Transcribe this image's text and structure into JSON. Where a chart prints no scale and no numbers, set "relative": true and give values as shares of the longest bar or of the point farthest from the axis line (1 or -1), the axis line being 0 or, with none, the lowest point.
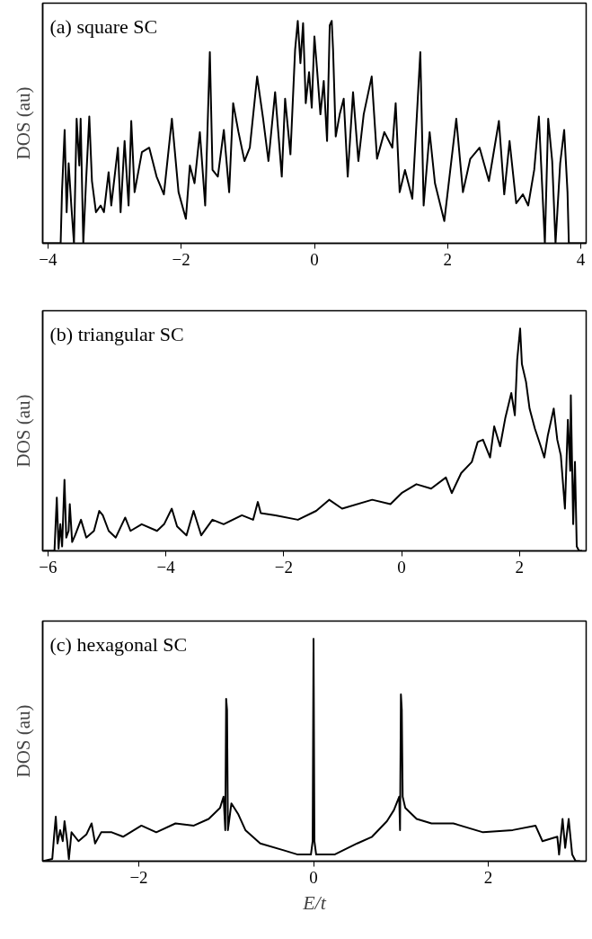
{
  "chart_data": [
    {
      "type": "line",
      "title": "(a) square SC",
      "ylabel": "DOS (au)",
      "relative": true,
      "tick_labels": "x",
      "grid": false,
      "line_style": "solid",
      "color": "#000000",
      "xlim": [
        -4.08,
        4.08
      ],
      "xticks": [
        -4,
        -2,
        0,
        2,
        4
      ],
      "x": [
        -4.08,
        -3.81,
        -3.79,
        -3.75,
        -3.72,
        -3.69,
        -3.65,
        -3.61,
        -3.57,
        -3.53,
        -3.51,
        -3.47,
        -3.43,
        -3.38,
        -3.34,
        -3.28,
        -3.21,
        -3.16,
        -3.09,
        -3.05,
        -2.95,
        -2.91,
        -2.85,
        -2.79,
        -2.75,
        -2.7,
        -2.59,
        -2.48,
        -2.37,
        -2.26,
        -2.14,
        -2.04,
        -1.93,
        -1.87,
        -1.8,
        -1.72,
        -1.64,
        -1.57,
        -1.53,
        -1.45,
        -1.36,
        -1.28,
        -1.22,
        -1.14,
        -1.05,
        -0.97,
        -0.86,
        -0.77,
        -0.69,
        -0.59,
        -0.49,
        -0.44,
        -0.36,
        -0.29,
        -0.25,
        -0.21,
        -0.17,
        -0.13,
        -0.08,
        -0.04,
        0.0,
        0.04,
        0.09,
        0.14,
        0.19,
        0.23,
        0.26,
        0.28,
        0.32,
        0.38,
        0.44,
        0.5,
        0.58,
        0.66,
        0.74,
        0.86,
        0.94,
        1.05,
        1.17,
        1.22,
        1.28,
        1.36,
        1.47,
        1.59,
        1.64,
        1.73,
        1.81,
        1.95,
        2.04,
        2.13,
        2.23,
        2.34,
        2.48,
        2.62,
        2.77,
        2.85,
        2.93,
        3.03,
        3.13,
        3.21,
        3.3,
        3.37,
        3.46,
        3.51,
        3.57,
        3.62,
        3.69,
        3.75,
        3.8,
        3.82,
        4.08
      ],
      "values": [
        0,
        0,
        0.23,
        0.51,
        0.14,
        0.36,
        0.17,
        0,
        0.56,
        0.35,
        0.56,
        0.0,
        0.27,
        0.57,
        0.28,
        0.14,
        0.17,
        0.14,
        0.32,
        0.17,
        0.43,
        0.14,
        0.46,
        0.17,
        0.55,
        0.23,
        0.41,
        0.43,
        0.3,
        0.22,
        0.56,
        0.23,
        0.11,
        0.35,
        0.27,
        0.5,
        0.17,
        0.86,
        0.33,
        0.3,
        0.51,
        0.23,
        0.63,
        0.5,
        0.37,
        0.43,
        0.75,
        0.56,
        0.37,
        0.68,
        0.3,
        0.65,
        0.4,
        0.87,
        1,
        0.81,
        0.99,
        0.63,
        0.77,
        0.61,
        0.93,
        0.78,
        0.58,
        0.73,
        0.46,
        0.98,
        1,
        0.87,
        0.48,
        0.58,
        0.65,
        0.3,
        0.68,
        0.37,
        0.58,
        0.75,
        0.38,
        0.5,
        0.43,
        0.63,
        0.23,
        0.33,
        0.2,
        0.86,
        0.17,
        0.5,
        0.27,
        0.1,
        0.33,
        0.56,
        0.23,
        0.38,
        0.43,
        0.28,
        0.55,
        0.22,
        0.46,
        0.18,
        0.22,
        0.17,
        0.33,
        0.57,
        0.0,
        0.56,
        0.37,
        0,
        0.36,
        0.51,
        0.23,
        0,
        0
      ]
    },
    {
      "type": "line",
      "title": "(b) triangular SC",
      "ylabel": "DOS (au)",
      "relative": true,
      "tick_labels": "x",
      "grid": false,
      "line_style": "solid",
      "color": "#000000",
      "xlim": [
        -6.09,
        3.13
      ],
      "xticks": [
        -6,
        -4,
        -2,
        0,
        2
      ],
      "x": [
        -6.07,
        -5.89,
        -5.85,
        -5.82,
        -5.79,
        -5.76,
        -5.72,
        -5.69,
        -5.65,
        -5.63,
        -5.59,
        -5.54,
        -5.44,
        -5.35,
        -5.22,
        -5.13,
        -5.07,
        -4.97,
        -4.85,
        -4.69,
        -4.6,
        -4.41,
        -4.15,
        -4.03,
        -3.9,
        -3.81,
        -3.65,
        -3.53,
        -3.4,
        -3.21,
        -3.02,
        -2.71,
        -2.52,
        -2.44,
        -2.39,
        -2.14,
        -1.76,
        -1.45,
        -1.23,
        -1.01,
        -0.5,
        -0.19,
        0.0,
        0.25,
        0.5,
        0.75,
        0.85,
        1.01,
        1.19,
        1.29,
        1.38,
        1.5,
        1.57,
        1.67,
        1.76,
        1.86,
        1.92,
        1.96,
        2.01,
        2.04,
        2.11,
        2.17,
        2.26,
        2.36,
        2.42,
        2.48,
        2.58,
        2.64,
        2.7,
        2.77,
        2.82,
        2.86,
        2.87,
        2.91,
        2.94,
        2.97,
        3.01,
        3.06
      ],
      "values": [
        0,
        0,
        0.24,
        0.01,
        0.12,
        0.02,
        0.32,
        0.06,
        0.09,
        0.21,
        0.04,
        0.07,
        0.14,
        0.06,
        0.09,
        0.18,
        0.16,
        0.09,
        0.06,
        0.15,
        0.09,
        0.12,
        0.09,
        0.12,
        0.19,
        0.11,
        0.07,
        0.18,
        0.07,
        0.14,
        0.12,
        0.16,
        0.14,
        0.22,
        0.17,
        0.16,
        0.14,
        0.18,
        0.23,
        0.19,
        0.23,
        0.21,
        0.26,
        0.3,
        0.28,
        0.33,
        0.26,
        0.35,
        0.4,
        0.49,
        0.5,
        0.42,
        0.56,
        0.47,
        0.6,
        0.71,
        0.61,
        0.86,
        1,
        0.84,
        0.76,
        0.64,
        0.55,
        0.47,
        0.42,
        0.52,
        0.64,
        0.5,
        0.43,
        0.19,
        0.59,
        0.36,
        0.7,
        0.12,
        0.4,
        0.02,
        0,
        0
      ]
    },
    {
      "type": "line",
      "title": "(c) hexagonal SC",
      "ylabel": "DOS (au)",
      "xlabel": "E/t",
      "relative": true,
      "tick_labels": "x",
      "grid": false,
      "line_style": "solid",
      "color": "#000000",
      "xlim": [
        -3.1,
        3.12
      ],
      "xticks": [
        -2,
        0,
        2
      ],
      "x": [
        -3.1,
        -2.99,
        -2.97,
        -2.95,
        -2.93,
        -2.9,
        -2.87,
        -2.85,
        -2.82,
        -2.8,
        -2.77,
        -2.69,
        -2.6,
        -2.54,
        -2.5,
        -2.43,
        -2.31,
        -2.18,
        -1.97,
        -1.8,
        -1.58,
        -1.37,
        -1.2,
        -1.07,
        -1.03,
        -1.01,
        -1.0,
        -0.99,
        -0.98,
        -0.94,
        -0.86,
        -0.78,
        -0.61,
        -0.35,
        -0.18,
        -0.03,
        -0.01,
        0.0,
        0.01,
        0.03,
        0.24,
        0.5,
        0.67,
        0.84,
        0.92,
        0.98,
        0.99,
        1.0,
        1.01,
        1.02,
        1.05,
        1.18,
        1.35,
        1.6,
        1.94,
        2.28,
        2.54,
        2.62,
        2.79,
        2.81,
        2.85,
        2.88,
        2.92,
        2.96,
        3.0,
        3.05
      ],
      "values": [
        0,
        0.01,
        0.11,
        0.2,
        0.08,
        0.14,
        0.09,
        0.18,
        0.09,
        0.01,
        0.13,
        0.09,
        0.12,
        0.17,
        0.08,
        0.13,
        0.13,
        0.11,
        0.16,
        0.13,
        0.17,
        0.16,
        0.19,
        0.24,
        0.29,
        0.14,
        0.73,
        0.68,
        0.14,
        0.26,
        0.21,
        0.14,
        0.08,
        0.05,
        0.03,
        0.03,
        0.09,
        1,
        0.09,
        0.03,
        0.03,
        0.08,
        0.11,
        0.18,
        0.23,
        0.29,
        0.14,
        0.75,
        0.68,
        0.29,
        0.24,
        0.19,
        0.17,
        0.17,
        0.13,
        0.14,
        0.16,
        0.09,
        0.11,
        0.03,
        0.19,
        0.06,
        0.19,
        0.03,
        0,
        0
      ]
    }
  ]
}
